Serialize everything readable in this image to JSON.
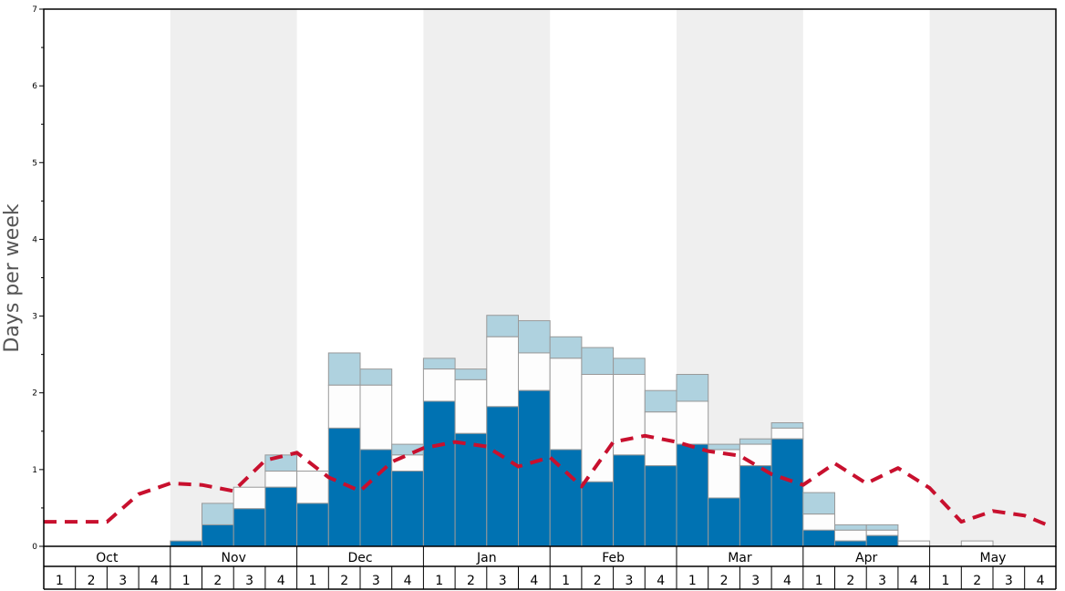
{
  "chart_data": {
    "type": "bar",
    "ylabel": "Days per week",
    "ylim": [
      0,
      7
    ],
    "yticks": [
      "0",
      "1",
      "2",
      "3",
      "4",
      "5",
      "6",
      "7"
    ],
    "months": [
      "Oct",
      "Nov",
      "Dec",
      "Jan",
      "Feb",
      "Mar",
      "Apr",
      "May"
    ],
    "week_labels": [
      "1",
      "2",
      "3",
      "4"
    ],
    "stacked_bar_values": {
      "dark_blue": [
        0,
        0,
        0,
        0,
        0.07,
        0.28,
        0.49,
        0.77,
        0.56,
        1.54,
        1.26,
        0.98,
        1.89,
        1.47,
        1.82,
        2.03,
        1.26,
        0.84,
        1.19,
        1.05,
        1.33,
        0.63,
        1.05,
        1.4,
        0.21,
        0.07,
        0.14,
        0,
        0,
        0,
        0,
        0
      ],
      "white_top": [
        0,
        0,
        0,
        0,
        0.07,
        0.28,
        0.77,
        0.98,
        0.98,
        2.1,
        2.1,
        1.19,
        2.31,
        2.17,
        2.73,
        2.52,
        2.45,
        2.24,
        2.24,
        1.75,
        1.89,
        1.26,
        1.33,
        1.54,
        0.42,
        0.21,
        0.21,
        0.07,
        0,
        0.07,
        0,
        0
      ],
      "light_blue_top": [
        0,
        0,
        0,
        0,
        0.07,
        0.56,
        0.77,
        1.19,
        0.98,
        2.52,
        2.31,
        1.33,
        2.45,
        2.31,
        3.01,
        2.94,
        2.73,
        2.59,
        2.45,
        2.03,
        2.24,
        1.33,
        1.4,
        1.61,
        0.7,
        0.28,
        0.28,
        0.07,
        0,
        0.07,
        0,
        0
      ]
    },
    "line_values": [
      0.32,
      0.32,
      0.32,
      0.68,
      0.82,
      0.8,
      0.72,
      1.12,
      1.22,
      0.9,
      0.72,
      1.1,
      1.28,
      1.36,
      1.3,
      1.04,
      1.16,
      0.78,
      1.36,
      1.44,
      1.36,
      1.24,
      1.18,
      0.94,
      0.8,
      1.08,
      0.82,
      1.02,
      0.76,
      0.32,
      0.46,
      0.4,
      0.28
    ],
    "colors": {
      "dark_blue": "#0072b2",
      "light_blue": "#afd2df",
      "white_bar": "#fdfdfd",
      "bar_border": "#999999",
      "line": "#c8102e",
      "shade": "#efefef",
      "axis": "#000000"
    }
  }
}
